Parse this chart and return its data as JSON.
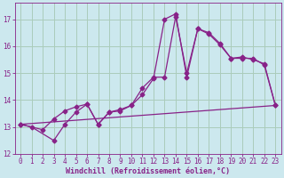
{
  "xlabel": "Windchill (Refroidissement éolien,°C)",
  "bg_color": "#cce8ee",
  "grid_color": "#aaccbb",
  "line_color": "#882288",
  "xlim": [
    -0.5,
    23.5
  ],
  "ylim": [
    12,
    17.6
  ],
  "yticks": [
    12,
    13,
    14,
    15,
    16,
    17
  ],
  "xticks": [
    0,
    1,
    2,
    3,
    4,
    5,
    6,
    7,
    8,
    9,
    10,
    11,
    12,
    13,
    14,
    15,
    16,
    17,
    18,
    19,
    20,
    21,
    22,
    23
  ],
  "series1_x": [
    0,
    1,
    3,
    4,
    5,
    6,
    7,
    8,
    9,
    10,
    11,
    12,
    13,
    14,
    15,
    16,
    17,
    18,
    19,
    20,
    21,
    22,
    23
  ],
  "series1_y": [
    13.1,
    13.0,
    12.5,
    13.1,
    13.55,
    13.85,
    13.1,
    13.55,
    13.6,
    13.8,
    14.2,
    14.8,
    17.0,
    17.2,
    14.85,
    16.65,
    16.45,
    16.05,
    15.55,
    15.55,
    15.55,
    15.3,
    13.8
  ],
  "series2_x": [
    0,
    2,
    3,
    4,
    5,
    6,
    7,
    8,
    9,
    10,
    11,
    12,
    13,
    14,
    15,
    16,
    17,
    18,
    19,
    20,
    21,
    22,
    23
  ],
  "series2_y": [
    13.1,
    12.9,
    13.3,
    13.6,
    13.75,
    13.85,
    13.1,
    13.55,
    13.65,
    13.8,
    14.45,
    14.85,
    14.85,
    17.1,
    15.0,
    16.65,
    16.5,
    16.1,
    15.55,
    15.6,
    15.5,
    15.35,
    13.8
  ],
  "series3_x": [
    0,
    23
  ],
  "series3_y": [
    13.1,
    13.8
  ],
  "marker": "D",
  "markersize": 2.5,
  "tick_fontsize": 5.5,
  "xlabel_fontsize": 6.0
}
